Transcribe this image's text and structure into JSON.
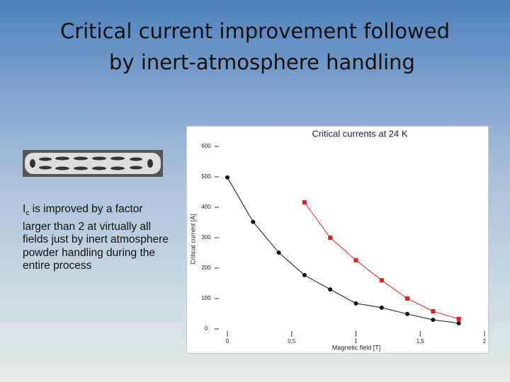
{
  "slide": {
    "title_lines": [
      "Critical current improvement followed",
      "by inert-atmosphere handling"
    ],
    "body": {
      "symbol": "I",
      "subscript": "c",
      "text": " is improved by a factor larger than 2 at virtually all fields just by inert atmosphere powder handling during the entire process"
    }
  },
  "chart_data": {
    "type": "line",
    "title": "Critical currents at 24 K",
    "x_label": "Magnetic field [T]",
    "y_label": "Critical current [A]",
    "x": [
      0,
      0.2,
      0.4,
      0.6,
      0.8,
      1.0,
      1.2,
      1.4,
      1.6,
      1.8
    ],
    "series": [
      {
        "color": "#111111",
        "marker": "circle",
        "values": [
          498,
          352,
          251,
          177,
          130,
          84,
          70,
          49,
          30,
          19
        ]
      },
      {
        "color": "#e02020",
        "marker": "square",
        "values": [
          null,
          null,
          null,
          416,
          300,
          226,
          160,
          100,
          58,
          33
        ]
      }
    ],
    "xlim": [
      0,
      2
    ],
    "ylim": [
      0,
      600
    ],
    "xticks": [
      0,
      {
        "value": 0.5,
        "label": "0,5"
      },
      1,
      {
        "value": 1.5,
        "label": "1,5"
      },
      2
    ],
    "yticks": [
      0,
      100,
      200,
      300,
      400,
      500,
      600
    ]
  }
}
